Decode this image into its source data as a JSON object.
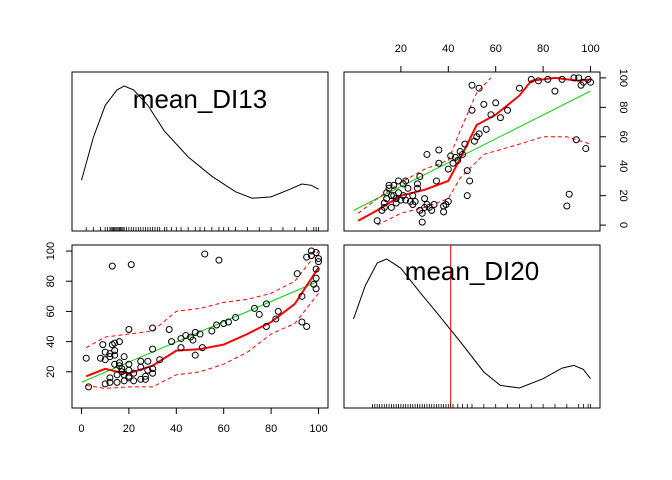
{
  "chart_data": {
    "type": "scatter",
    "variables": [
      "mean_DI13",
      "mean_DI20"
    ],
    "axis_range": [
      0,
      100
    ],
    "ticks": [
      0,
      20,
      40,
      60,
      80,
      100
    ],
    "x_ticks_top": [
      20,
      40,
      60,
      80,
      100
    ],
    "y_ticks_right": [
      0,
      20,
      40,
      60,
      80,
      100
    ],
    "y_ticks_left": [
      20,
      40,
      60,
      80,
      100
    ],
    "x_ticks_bottom": [
      0,
      20,
      40,
      60,
      80,
      100
    ],
    "colors": {
      "points": "#000000",
      "smooth": "#ff0000",
      "linear": "#00cc00",
      "density": "#000000",
      "vline": "#ff0000"
    },
    "mean_DI20_vline": 41,
    "pairs": [
      [
        10,
        3
      ],
      [
        12,
        10
      ],
      [
        13,
        12
      ],
      [
        13,
        15
      ],
      [
        14,
        18
      ],
      [
        14,
        22
      ],
      [
        15,
        25
      ],
      [
        15,
        27
      ],
      [
        16,
        12
      ],
      [
        16,
        20
      ],
      [
        17,
        20
      ],
      [
        17,
        27
      ],
      [
        18,
        15
      ],
      [
        18,
        18
      ],
      [
        19,
        30
      ],
      [
        19,
        22
      ],
      [
        20,
        17
      ],
      [
        21,
        20
      ],
      [
        21,
        28
      ],
      [
        22,
        30
      ],
      [
        22,
        17
      ],
      [
        23,
        25
      ],
      [
        24,
        16
      ],
      [
        25,
        20
      ],
      [
        25,
        14
      ],
      [
        26,
        16
      ],
      [
        27,
        25
      ],
      [
        27,
        28
      ],
      [
        28,
        10
      ],
      [
        28,
        33
      ],
      [
        29,
        2
      ],
      [
        29,
        8
      ],
      [
        30,
        12
      ],
      [
        30,
        18
      ],
      [
        31,
        48
      ],
      [
        31,
        14
      ],
      [
        32,
        12
      ],
      [
        33,
        10
      ],
      [
        34,
        14
      ],
      [
        35,
        30
      ],
      [
        36,
        42
      ],
      [
        36,
        51
      ],
      [
        38,
        13
      ],
      [
        38,
        9
      ],
      [
        39,
        14
      ],
      [
        40,
        16
      ],
      [
        40,
        38
      ],
      [
        41,
        47
      ],
      [
        42,
        42
      ],
      [
        43,
        46
      ],
      [
        44,
        44
      ],
      [
        45,
        50
      ],
      [
        46,
        48
      ],
      [
        47,
        55
      ],
      [
        48,
        37
      ],
      [
        48,
        20
      ],
      [
        49,
        30
      ],
      [
        50,
        78
      ],
      [
        51,
        57
      ],
      [
        52,
        60
      ],
      [
        53,
        62
      ],
      [
        55,
        82
      ],
      [
        56,
        65
      ],
      [
        58,
        75
      ],
      [
        60,
        83
      ],
      [
        62,
        73
      ],
      [
        65,
        78
      ],
      [
        70,
        93
      ],
      [
        75,
        99
      ],
      [
        78,
        98
      ],
      [
        82,
        99
      ],
      [
        85,
        91
      ],
      [
        88,
        99
      ],
      [
        90,
        13
      ],
      [
        91,
        21
      ],
      [
        93,
        100
      ],
      [
        94,
        58
      ],
      [
        95,
        100
      ],
      [
        97,
        97
      ],
      [
        98,
        52
      ],
      [
        99,
        99
      ],
      [
        100,
        97
      ],
      [
        96,
        95
      ],
      [
        50,
        95
      ],
      [
        53,
        93
      ]
    ],
    "smooth_DI20_vs_DI13": [
      [
        2,
        3
      ],
      [
        10,
        10
      ],
      [
        20,
        20
      ],
      [
        30,
        24
      ],
      [
        40,
        30
      ],
      [
        45,
        45
      ],
      [
        52,
        68
      ],
      [
        60,
        75
      ],
      [
        70,
        88
      ],
      [
        75,
        98
      ],
      [
        85,
        100
      ],
      [
        95,
        98
      ],
      [
        100,
        99
      ]
    ],
    "smooth_upper_DI20_vs_DI13": [
      [
        2,
        8
      ],
      [
        10,
        18
      ],
      [
        20,
        29
      ],
      [
        30,
        38
      ],
      [
        40,
        44
      ],
      [
        45,
        64
      ],
      [
        52,
        90
      ],
      [
        58,
        100
      ]
    ],
    "smooth_lower_DI20_vs_DI13": [
      [
        10,
        0
      ],
      [
        20,
        8
      ],
      [
        30,
        12
      ],
      [
        40,
        18
      ],
      [
        45,
        32
      ],
      [
        55,
        48
      ],
      [
        70,
        55
      ],
      [
        80,
        60
      ],
      [
        90,
        60
      ],
      [
        100,
        55
      ]
    ],
    "linear_DI20_vs_DI13": [
      [
        0,
        10
      ],
      [
        100,
        91
      ]
    ],
    "smooth_DI13_vs_DI20": [
      [
        2,
        17
      ],
      [
        10,
        22
      ],
      [
        15,
        20
      ],
      [
        20,
        19
      ],
      [
        30,
        24
      ],
      [
        40,
        34
      ],
      [
        50,
        35
      ],
      [
        60,
        38
      ],
      [
        70,
        45
      ],
      [
        80,
        53
      ],
      [
        90,
        65
      ],
      [
        100,
        89
      ]
    ],
    "smooth_upper_DI13_vs_DI20": [
      [
        2,
        36
      ],
      [
        10,
        43
      ],
      [
        20,
        45
      ],
      [
        30,
        47
      ],
      [
        40,
        60
      ],
      [
        50,
        62
      ],
      [
        60,
        66
      ],
      [
        70,
        68
      ],
      [
        80,
        72
      ],
      [
        90,
        80
      ],
      [
        100,
        100
      ]
    ],
    "smooth_lower_DI13_vs_DI20": [
      [
        2,
        11
      ],
      [
        10,
        9
      ],
      [
        20,
        10
      ],
      [
        30,
        10
      ],
      [
        40,
        18
      ],
      [
        50,
        20
      ],
      [
        60,
        25
      ],
      [
        70,
        33
      ],
      [
        80,
        45
      ],
      [
        90,
        52
      ],
      [
        100,
        72
      ]
    ],
    "linear_DI13_vs_DI20": [
      [
        0,
        13
      ],
      [
        100,
        80
      ]
    ],
    "density_DI13": [
      [
        0,
        0.27
      ],
      [
        5,
        0.6
      ],
      [
        10,
        0.85
      ],
      [
        15,
        0.97
      ],
      [
        18,
        1.0
      ],
      [
        22,
        0.97
      ],
      [
        28,
        0.85
      ],
      [
        35,
        0.65
      ],
      [
        45,
        0.45
      ],
      [
        55,
        0.3
      ],
      [
        65,
        0.18
      ],
      [
        72,
        0.13
      ],
      [
        80,
        0.14
      ],
      [
        88,
        0.2
      ],
      [
        93,
        0.24
      ],
      [
        97,
        0.23
      ],
      [
        100,
        0.2
      ]
    ],
    "density_DI20": [
      [
        0,
        0.55
      ],
      [
        5,
        0.8
      ],
      [
        10,
        0.97
      ],
      [
        14,
        1.0
      ],
      [
        20,
        0.93
      ],
      [
        28,
        0.75
      ],
      [
        35,
        0.6
      ],
      [
        45,
        0.38
      ],
      [
        55,
        0.15
      ],
      [
        62,
        0.05
      ],
      [
        70,
        0.03
      ],
      [
        80,
        0.1
      ],
      [
        88,
        0.18
      ],
      [
        93,
        0.2
      ],
      [
        97,
        0.17
      ],
      [
        100,
        0.1
      ]
    ],
    "rug_DI13": [
      2,
      5,
      8,
      10,
      11,
      12,
      12.5,
      13,
      13.5,
      14,
      14.5,
      15,
      15.5,
      16,
      16.5,
      17,
      17.5,
      18,
      19,
      20,
      21,
      22,
      23,
      24,
      25,
      26,
      27,
      28,
      29,
      30,
      31,
      32,
      33,
      35,
      36,
      38,
      40,
      42,
      45,
      48,
      50,
      52,
      55,
      58,
      60,
      62,
      65,
      70,
      75,
      80,
      85,
      90,
      95,
      98,
      99,
      100
    ],
    "rug_DI20": [
      8,
      9,
      10,
      11,
      12,
      13,
      14,
      15,
      16,
      17,
      18,
      19,
      20,
      21,
      22,
      23,
      24,
      25,
      26,
      27,
      28,
      29,
      30,
      31,
      32,
      33,
      34,
      35,
      36,
      37,
      38,
      39,
      40,
      41,
      42,
      44,
      46,
      48,
      50,
      55,
      60,
      65,
      70,
      75,
      80,
      85,
      90,
      95,
      97,
      99,
      100
    ],
    "labels": {
      "diag_top_left": "mean_DI13",
      "diag_bottom_right": "mean_DI20"
    }
  }
}
